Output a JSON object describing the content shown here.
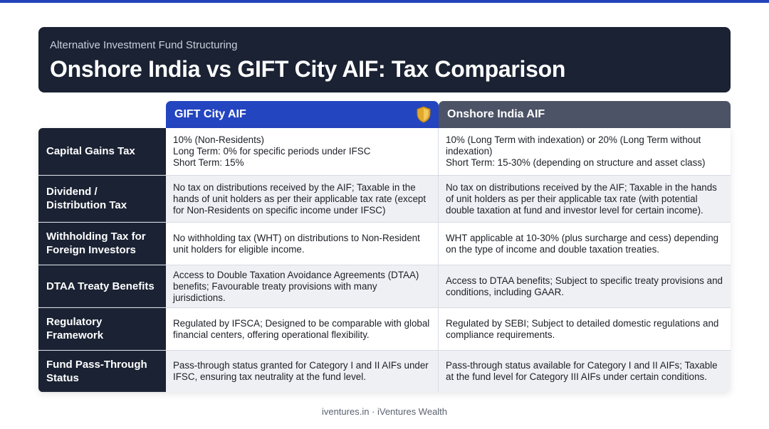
{
  "header": {
    "subtitle": "Alternative Investment Fund Structuring",
    "title": "Onshore India vs GIFT City AIF: Tax Comparison"
  },
  "columns": {
    "gift": "GIFT City AIF",
    "onshore": "Onshore India AIF",
    "gift_icon": "shield-icon"
  },
  "rows": [
    {
      "label": "Capital Gains Tax",
      "gift": "10% (Non-Residents)\nLong Term: 0% for specific periods under IFSC\nShort Term: 15%",
      "onshore": "10% (Long Term with indexation) or 20% (Long Term without indexation)\nShort Term: 15-30% (depending on structure and asset class)"
    },
    {
      "label": "Dividend / Distribution Tax",
      "gift": "No tax on distributions received by the AIF; Taxable in the hands of unit holders as per their applicable tax rate (except for Non-Residents on specific income under IFSC)",
      "onshore": "No tax on distributions received by the AIF; Taxable in the hands of unit holders as per their applicable tax rate (with potential double taxation at fund and investor level for certain income)."
    },
    {
      "label": "Withholding Tax for Foreign Investors",
      "gift": "No withholding tax (WHT) on distributions to Non-Resident unit holders for eligible income.",
      "onshore": "WHT applicable at 10-30% (plus surcharge and cess) depending on the type of income and double taxation treaties."
    },
    {
      "label": "DTAA Treaty Benefits",
      "gift": "Access to Double Taxation Avoidance Agreements (DTAA) benefits; Favourable treaty provisions with many jurisdictions.",
      "onshore": "Access to DTAA benefits; Subject to specific treaty provisions and conditions, including GAAR."
    },
    {
      "label": "Regulatory Framework",
      "gift": "Regulated by IFSCA; Designed to be comparable with global financial centers, offering operational flexibility.",
      "onshore": "Regulated by SEBI; Subject to detailed domestic regulations and compliance requirements."
    },
    {
      "label": "Fund Pass-Through Status",
      "gift": "Pass-through status granted for Category I and II AIFs under IFSC, ensuring tax neutrality at the fund level.",
      "onshore": "Pass-through status available for Category I and II AIFs; Taxable at the fund level for Category III AIFs under certain conditions."
    }
  ],
  "footer": "iventures.in · iVentures Wealth",
  "colors": {
    "navy": "#1a2233",
    "gift_blue": "#2445c0",
    "onshore_gray": "#4c5366",
    "shield_gold": "#e0a92c"
  }
}
